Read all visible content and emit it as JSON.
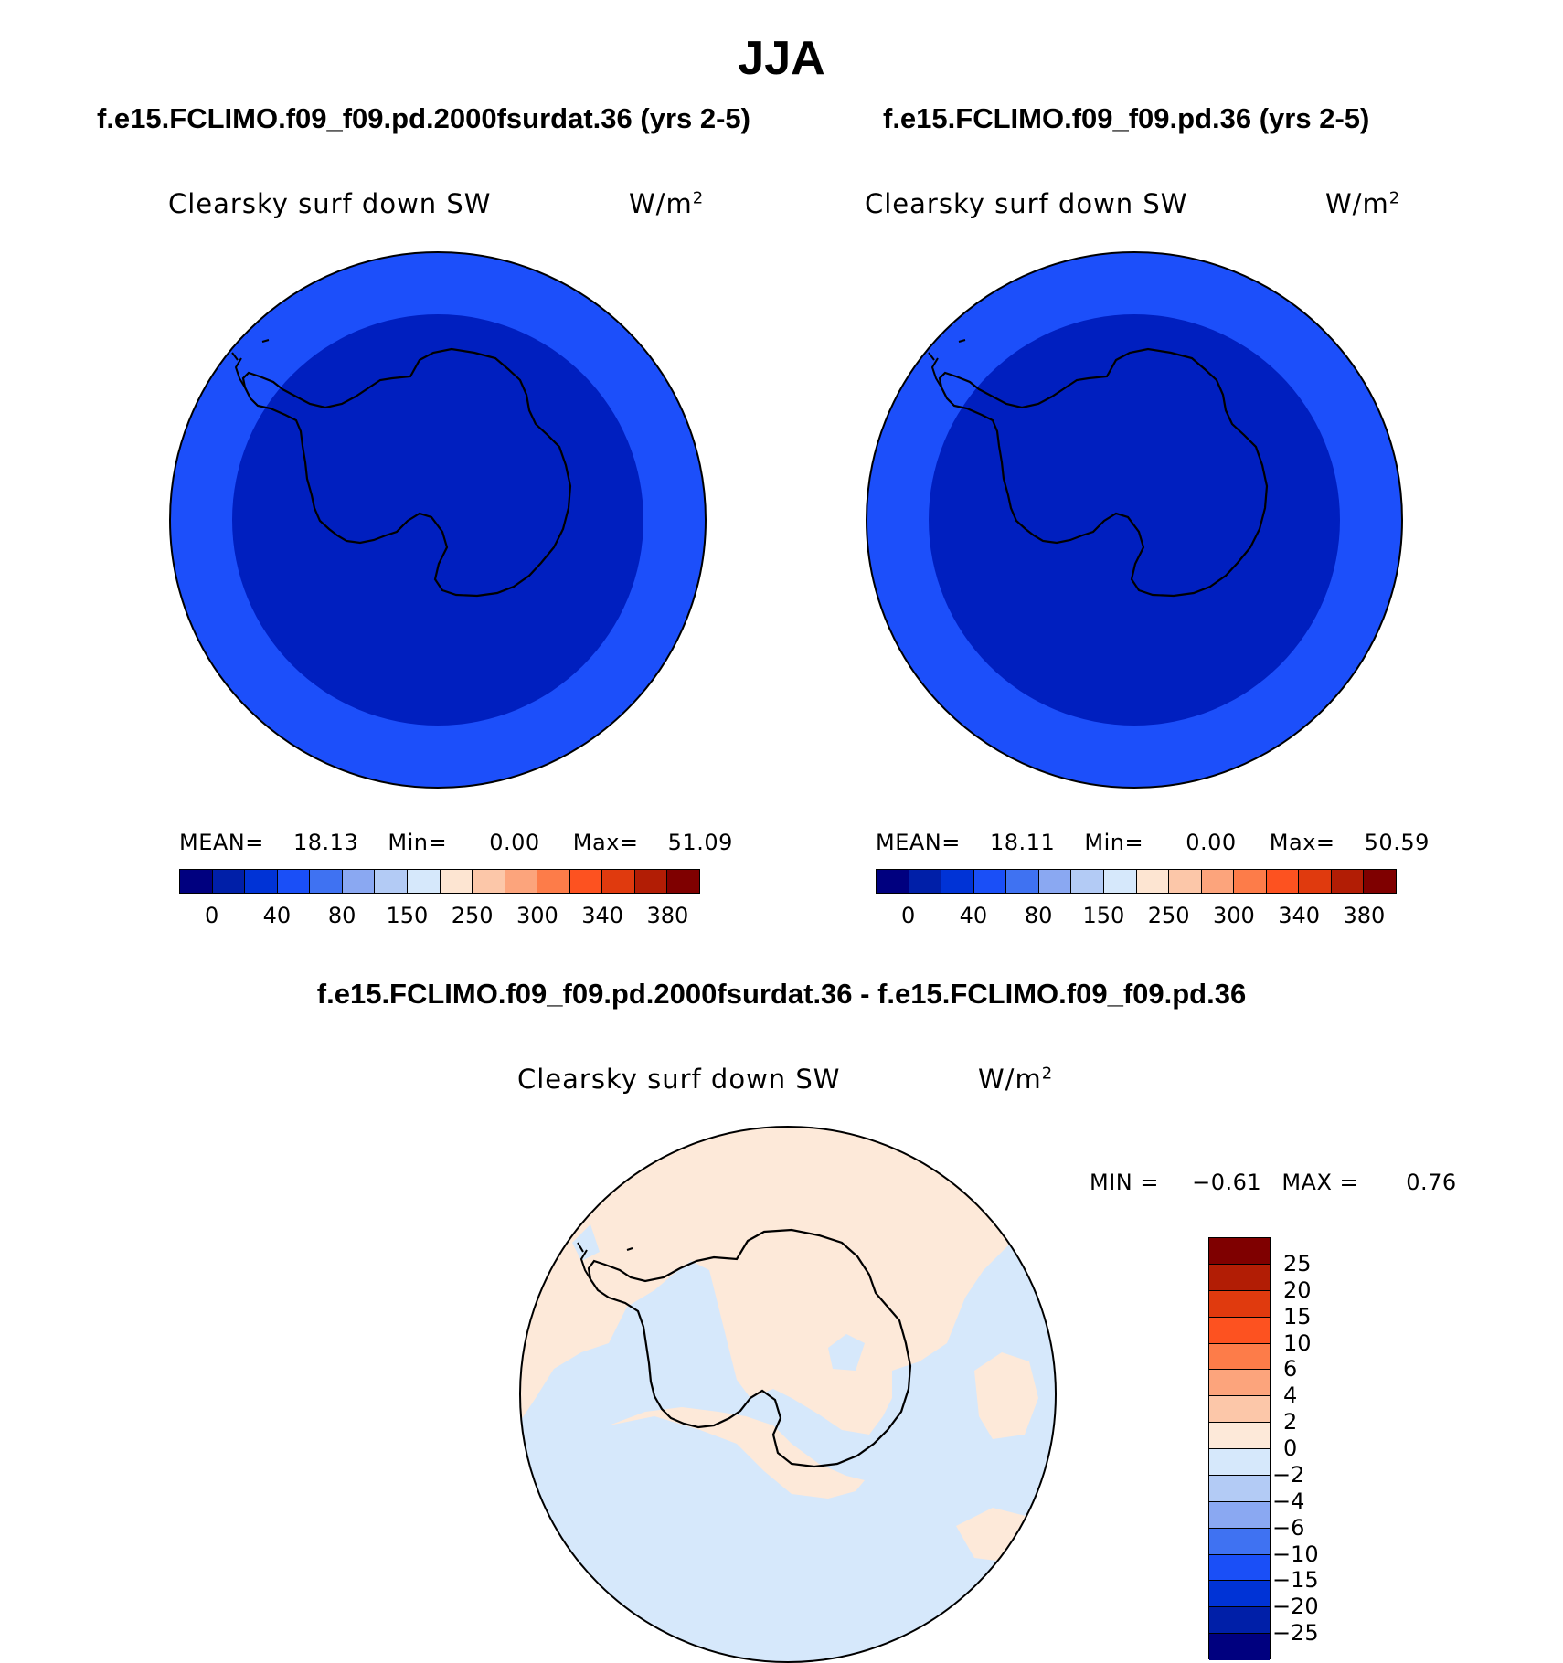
{
  "title": "JJA",
  "panels": [
    {
      "case_title": "f.e15.FCLIMO.f09_f09.pd.2000fsurdat.36 (yrs 2-5)",
      "var_label": "Clearsky surf down SW",
      "units": "W/m",
      "units_sup": "2",
      "stats": {
        "mean_label": "MEAN=",
        "mean": "18.13",
        "min_label": "Min=",
        "min": "0.00",
        "max_label": "Max=",
        "max": "51.09"
      },
      "colorbar_labels": [
        "0",
        "40",
        "80",
        "150",
        "250",
        "300",
        "340",
        "380"
      ]
    },
    {
      "case_title": "f.e15.FCLIMO.f09_f09.pd.36 (yrs 2-5)",
      "var_label": "Clearsky surf down SW",
      "units": "W/m",
      "units_sup": "2",
      "stats": {
        "mean_label": "MEAN=",
        "mean": "18.11",
        "min_label": "Min=",
        "min": "0.00",
        "max_label": "Max=",
        "max": "50.59"
      },
      "colorbar_labels": [
        "0",
        "40",
        "80",
        "150",
        "250",
        "300",
        "340",
        "380"
      ]
    }
  ],
  "diff_panel": {
    "case_title": "f.e15.FCLIMO.f09_f09.pd.2000fsurdat.36 - f.e15.FCLIMO.f09_f09.pd.36",
    "var_label": "Clearsky surf down SW",
    "units": "W/m",
    "units_sup": "2",
    "stats": {
      "min_label": "MIN =",
      "min": "−0.61",
      "max_label": "MAX =",
      "max": "0.76"
    },
    "colorbar_labels": [
      "25",
      "20",
      "15",
      "10",
      "6",
      "4",
      "2",
      "0",
      "−2",
      "−4",
      "−6",
      "−10",
      "−15",
      "−20",
      "−25"
    ]
  },
  "colors": {
    "abs_scale": [
      "#00007f",
      "#001fa8",
      "#0033d6",
      "#1a4ff7",
      "#3f72f2",
      "#8aa8f2",
      "#b3cbf5",
      "#d6e8fb",
      "#fde5d2",
      "#fcc7a9",
      "#fca47c",
      "#fd7c49",
      "#fd5220",
      "#e03a0e",
      "#b21d05",
      "#7f0000"
    ],
    "diff_scale": [
      "#7f0000",
      "#b21d05",
      "#e03a0e",
      "#fd5220",
      "#fd7c49",
      "#fca47c",
      "#fcc7a9",
      "#fde9d9",
      "#d6e8fb",
      "#b3cbf5",
      "#8aa8f2",
      "#3f72f2",
      "#1a4ff7",
      "#0033d6",
      "#001fa8",
      "#00007f"
    ],
    "map_outer": "#1c4ffa",
    "map_inner": "#001fbf",
    "diff_positive": "#fde9d9",
    "diff_negative": "#d6e8fb"
  }
}
